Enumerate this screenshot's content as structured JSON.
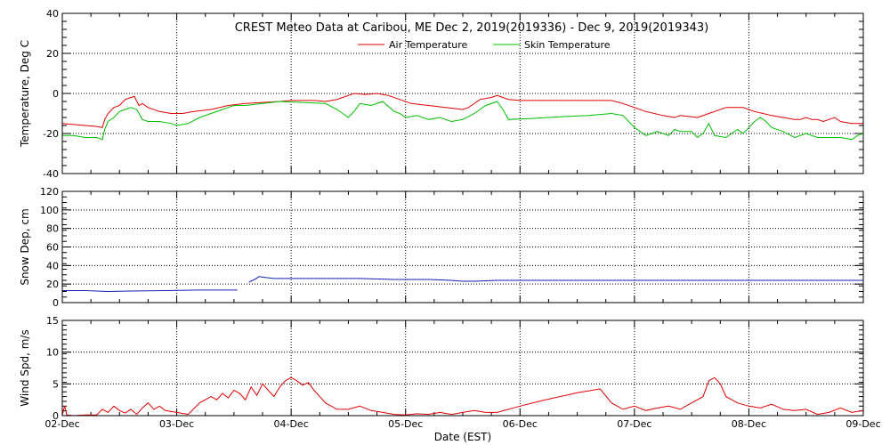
{
  "title": "CREST Meteo Data at Caribou, ME   Dec  2, 2019(2019336) - Dec  9, 2019(2019343)",
  "xlabel": "Date (EST)",
  "x_ticks": [
    "02-Dec",
    "03-Dec",
    "04-Dec",
    "05-Dec",
    "06-Dec",
    "07-Dec",
    "08-Dec",
    "09-Dec"
  ],
  "chart_data": [
    {
      "type": "line",
      "ylabel": "Temperature, Deg C",
      "ylim": [
        -40,
        40
      ],
      "yticks": [
        -40,
        -20,
        0,
        20,
        40
      ],
      "xlim": [
        0,
        7
      ],
      "grid": true,
      "legend": "top-center",
      "series": [
        {
          "name": "Air Temperature",
          "color": "#e00000",
          "points": [
            [
              0.0,
              -15
            ],
            [
              0.1,
              -15.5
            ],
            [
              0.2,
              -16
            ],
            [
              0.3,
              -16.5
            ],
            [
              0.35,
              -17
            ],
            [
              0.37,
              -13
            ],
            [
              0.4,
              -10
            ],
            [
              0.45,
              -7
            ],
            [
              0.5,
              -6
            ],
            [
              0.55,
              -3
            ],
            [
              0.6,
              -2
            ],
            [
              0.63,
              -1.5
            ],
            [
              0.67,
              -6
            ],
            [
              0.7,
              -5
            ],
            [
              0.75,
              -7
            ],
            [
              0.85,
              -9
            ],
            [
              0.95,
              -10
            ],
            [
              1.05,
              -10
            ],
            [
              1.15,
              -9
            ],
            [
              1.3,
              -8
            ],
            [
              1.45,
              -6
            ],
            [
              1.6,
              -5
            ],
            [
              1.75,
              -4.5
            ],
            [
              1.9,
              -4
            ],
            [
              2.0,
              -3.5
            ],
            [
              2.2,
              -3.5
            ],
            [
              2.3,
              -4
            ],
            [
              2.4,
              -3
            ],
            [
              2.45,
              -2
            ],
            [
              2.5,
              -1
            ],
            [
              2.55,
              0
            ],
            [
              2.65,
              -0.5
            ],
            [
              2.75,
              0
            ],
            [
              2.85,
              -1
            ],
            [
              2.95,
              -3
            ],
            [
              3.05,
              -5
            ],
            [
              3.2,
              -6
            ],
            [
              3.35,
              -7
            ],
            [
              3.5,
              -8
            ],
            [
              3.55,
              -7
            ],
            [
              3.65,
              -3
            ],
            [
              3.75,
              -2
            ],
            [
              3.8,
              -1
            ],
            [
              3.85,
              -2
            ],
            [
              3.9,
              -3
            ],
            [
              4.0,
              -3.5
            ],
            [
              4.3,
              -3.5
            ],
            [
              4.6,
              -3.5
            ],
            [
              4.8,
              -3.5
            ],
            [
              4.9,
              -5
            ],
            [
              5.0,
              -7
            ],
            [
              5.1,
              -9
            ],
            [
              5.25,
              -11
            ],
            [
              5.35,
              -12
            ],
            [
              5.4,
              -11
            ],
            [
              5.55,
              -12
            ],
            [
              5.65,
              -10
            ],
            [
              5.7,
              -9
            ],
            [
              5.8,
              -7
            ],
            [
              5.95,
              -7
            ],
            [
              6.05,
              -9
            ],
            [
              6.2,
              -11
            ],
            [
              6.3,
              -12
            ],
            [
              6.4,
              -13
            ],
            [
              6.45,
              -13
            ],
            [
              6.5,
              -12
            ],
            [
              6.55,
              -13
            ],
            [
              6.6,
              -13
            ],
            [
              6.65,
              -14
            ],
            [
              6.7,
              -13
            ],
            [
              6.75,
              -12
            ],
            [
              6.8,
              -14
            ],
            [
              6.9,
              -15
            ],
            [
              7.0,
              -15
            ]
          ]
        },
        {
          "name": "Skin Temperature",
          "color": "#00c000",
          "points": [
            [
              0.0,
              -21
            ],
            [
              0.1,
              -21
            ],
            [
              0.2,
              -22
            ],
            [
              0.3,
              -22
            ],
            [
              0.35,
              -23
            ],
            [
              0.37,
              -18
            ],
            [
              0.4,
              -14
            ],
            [
              0.45,
              -12
            ],
            [
              0.5,
              -9
            ],
            [
              0.55,
              -8
            ],
            [
              0.6,
              -7
            ],
            [
              0.65,
              -8
            ],
            [
              0.7,
              -13
            ],
            [
              0.75,
              -14
            ],
            [
              0.8,
              -14
            ],
            [
              0.85,
              -14
            ],
            [
              0.95,
              -15
            ],
            [
              1.0,
              -16
            ],
            [
              1.1,
              -15
            ],
            [
              1.2,
              -12
            ],
            [
              1.3,
              -10
            ],
            [
              1.4,
              -8
            ],
            [
              1.5,
              -6
            ],
            [
              1.6,
              -6
            ],
            [
              1.75,
              -5
            ],
            [
              1.9,
              -4
            ],
            [
              2.1,
              -4.5
            ],
            [
              2.3,
              -5
            ],
            [
              2.4,
              -8
            ],
            [
              2.45,
              -10
            ],
            [
              2.5,
              -12
            ],
            [
              2.55,
              -9
            ],
            [
              2.6,
              -5
            ],
            [
              2.7,
              -6
            ],
            [
              2.8,
              -4
            ],
            [
              2.9,
              -9
            ],
            [
              2.95,
              -10
            ],
            [
              3.0,
              -12
            ],
            [
              3.1,
              -11
            ],
            [
              3.2,
              -13
            ],
            [
              3.3,
              -12
            ],
            [
              3.4,
              -14
            ],
            [
              3.5,
              -13
            ],
            [
              3.6,
              -10
            ],
            [
              3.7,
              -6
            ],
            [
              3.8,
              -4
            ],
            [
              3.85,
              -8
            ],
            [
              3.9,
              -13
            ],
            [
              4.1,
              -12.5
            ],
            [
              4.4,
              -11.5
            ],
            [
              4.6,
              -11
            ],
            [
              4.8,
              -10
            ],
            [
              4.9,
              -11
            ],
            [
              4.95,
              -14
            ],
            [
              5.0,
              -17
            ],
            [
              5.05,
              -19
            ],
            [
              5.1,
              -21
            ],
            [
              5.15,
              -20
            ],
            [
              5.2,
              -19
            ],
            [
              5.25,
              -20
            ],
            [
              5.3,
              -21
            ],
            [
              5.35,
              -18
            ],
            [
              5.4,
              -19
            ],
            [
              5.5,
              -19
            ],
            [
              5.55,
              -22
            ],
            [
              5.6,
              -20
            ],
            [
              5.65,
              -15
            ],
            [
              5.7,
              -21
            ],
            [
              5.8,
              -22
            ],
            [
              5.9,
              -18
            ],
            [
              5.95,
              -20
            ],
            [
              6.0,
              -17
            ],
            [
              6.05,
              -14
            ],
            [
              6.1,
              -12
            ],
            [
              6.15,
              -14
            ],
            [
              6.2,
              -17
            ],
            [
              6.3,
              -19
            ],
            [
              6.4,
              -22
            ],
            [
              6.5,
              -20
            ],
            [
              6.6,
              -22
            ],
            [
              6.7,
              -22
            ],
            [
              6.8,
              -22
            ],
            [
              6.9,
              -23
            ],
            [
              6.95,
              -21
            ],
            [
              7.0,
              -20
            ]
          ]
        }
      ]
    },
    {
      "type": "line",
      "ylabel": "Snow Dep, cm",
      "ylim": [
        0,
        120
      ],
      "yticks": [
        0,
        20,
        40,
        60,
        80,
        100,
        120
      ],
      "xlim": [
        0,
        7
      ],
      "grid": true,
      "series": [
        {
          "color": "#1020b0",
          "points": [
            [
              0.0,
              13
            ],
            [
              0.2,
              13
            ],
            [
              0.4,
              12
            ],
            [
              0.6,
              12.5
            ],
            [
              0.9,
              13
            ],
            [
              1.2,
              13.5
            ],
            [
              1.5,
              13.5
            ],
            [
              1.53,
              13.5
            ]
          ],
          "points2": [
            [
              1.63,
              22
            ],
            [
              1.68,
              25
            ],
            [
              1.72,
              28
            ],
            [
              1.78,
              27
            ],
            [
              1.85,
              26
            ],
            [
              2.0,
              26
            ],
            [
              2.3,
              26
            ],
            [
              2.6,
              26
            ],
            [
              2.9,
              25
            ],
            [
              3.2,
              25
            ],
            [
              3.4,
              24
            ],
            [
              3.5,
              23
            ],
            [
              3.6,
              23
            ],
            [
              3.8,
              24
            ],
            [
              4.0,
              24
            ],
            [
              4.5,
              24
            ],
            [
              5.0,
              24
            ],
            [
              5.5,
              24
            ],
            [
              6.0,
              24
            ],
            [
              6.5,
              24
            ],
            [
              7.0,
              24
            ]
          ]
        }
      ]
    },
    {
      "type": "line",
      "ylabel": "Wind Spd, m/s",
      "ylim": [
        0,
        15
      ],
      "yticks": [
        0,
        5,
        10,
        15
      ],
      "xlim": [
        0,
        7
      ],
      "grid": true,
      "series": [
        {
          "color": "#e00000",
          "points": [
            [
              0.0,
              0.1
            ],
            [
              0.02,
              1.5
            ],
            [
              0.04,
              0.1
            ],
            [
              0.1,
              0
            ],
            [
              0.2,
              0.1
            ],
            [
              0.3,
              0.1
            ],
            [
              0.35,
              1.0
            ],
            [
              0.4,
              0.5
            ],
            [
              0.45,
              1.5
            ],
            [
              0.5,
              0.8
            ],
            [
              0.55,
              0.4
            ],
            [
              0.6,
              1.0
            ],
            [
              0.65,
              0.2
            ],
            [
              0.7,
              1.2
            ],
            [
              0.75,
              2.0
            ],
            [
              0.8,
              1.0
            ],
            [
              0.85,
              1.5
            ],
            [
              0.9,
              0.8
            ],
            [
              1.0,
              0.5
            ],
            [
              1.1,
              0.2
            ],
            [
              1.2,
              2.0
            ],
            [
              1.3,
              3.0
            ],
            [
              1.35,
              2.5
            ],
            [
              1.4,
              3.5
            ],
            [
              1.45,
              2.8
            ],
            [
              1.5,
              4.0
            ],
            [
              1.55,
              3.5
            ],
            [
              1.6,
              2.5
            ],
            [
              1.65,
              4.5
            ],
            [
              1.7,
              3.2
            ],
            [
              1.75,
              5.0
            ],
            [
              1.8,
              4.0
            ],
            [
              1.85,
              3.0
            ],
            [
              1.9,
              4.5
            ],
            [
              1.95,
              5.5
            ],
            [
              2.0,
              6.0
            ],
            [
              2.05,
              5.5
            ],
            [
              2.1,
              4.8
            ],
            [
              2.15,
              5.2
            ],
            [
              2.2,
              4.0
            ],
            [
              2.25,
              3.0
            ],
            [
              2.3,
              2.0
            ],
            [
              2.4,
              1.0
            ],
            [
              2.5,
              1.0
            ],
            [
              2.6,
              1.5
            ],
            [
              2.7,
              0.8
            ],
            [
              2.8,
              0.5
            ],
            [
              2.9,
              0.2
            ],
            [
              3.0,
              0.1
            ],
            [
              3.1,
              0.3
            ],
            [
              3.2,
              0.2
            ],
            [
              3.3,
              0.5
            ],
            [
              3.4,
              0.2
            ],
            [
              3.5,
              0.5
            ],
            [
              3.6,
              0.8
            ],
            [
              3.7,
              0.5
            ],
            [
              3.8,
              0.5
            ],
            [
              4.0,
              1.5
            ],
            [
              4.2,
              2.4
            ],
            [
              4.5,
              3.6
            ],
            [
              4.7,
              4.2
            ],
            [
              4.8,
              2.0
            ],
            [
              4.9,
              1.0
            ],
            [
              5.0,
              1.5
            ],
            [
              5.1,
              0.8
            ],
            [
              5.2,
              1.2
            ],
            [
              5.3,
              1.5
            ],
            [
              5.4,
              1.0
            ],
            [
              5.5,
              2.0
            ],
            [
              5.6,
              3.0
            ],
            [
              5.65,
              5.5
            ],
            [
              5.7,
              6.0
            ],
            [
              5.75,
              5.0
            ],
            [
              5.8,
              3.0
            ],
            [
              5.9,
              2.0
            ],
            [
              6.0,
              1.5
            ],
            [
              6.1,
              1.2
            ],
            [
              6.2,
              1.8
            ],
            [
              6.3,
              1.0
            ],
            [
              6.4,
              0.8
            ],
            [
              6.5,
              1.0
            ],
            [
              6.6,
              0.2
            ],
            [
              6.7,
              0.5
            ],
            [
              6.8,
              1.2
            ],
            [
              6.9,
              0.5
            ],
            [
              7.0,
              0.8
            ]
          ]
        }
      ]
    }
  ]
}
